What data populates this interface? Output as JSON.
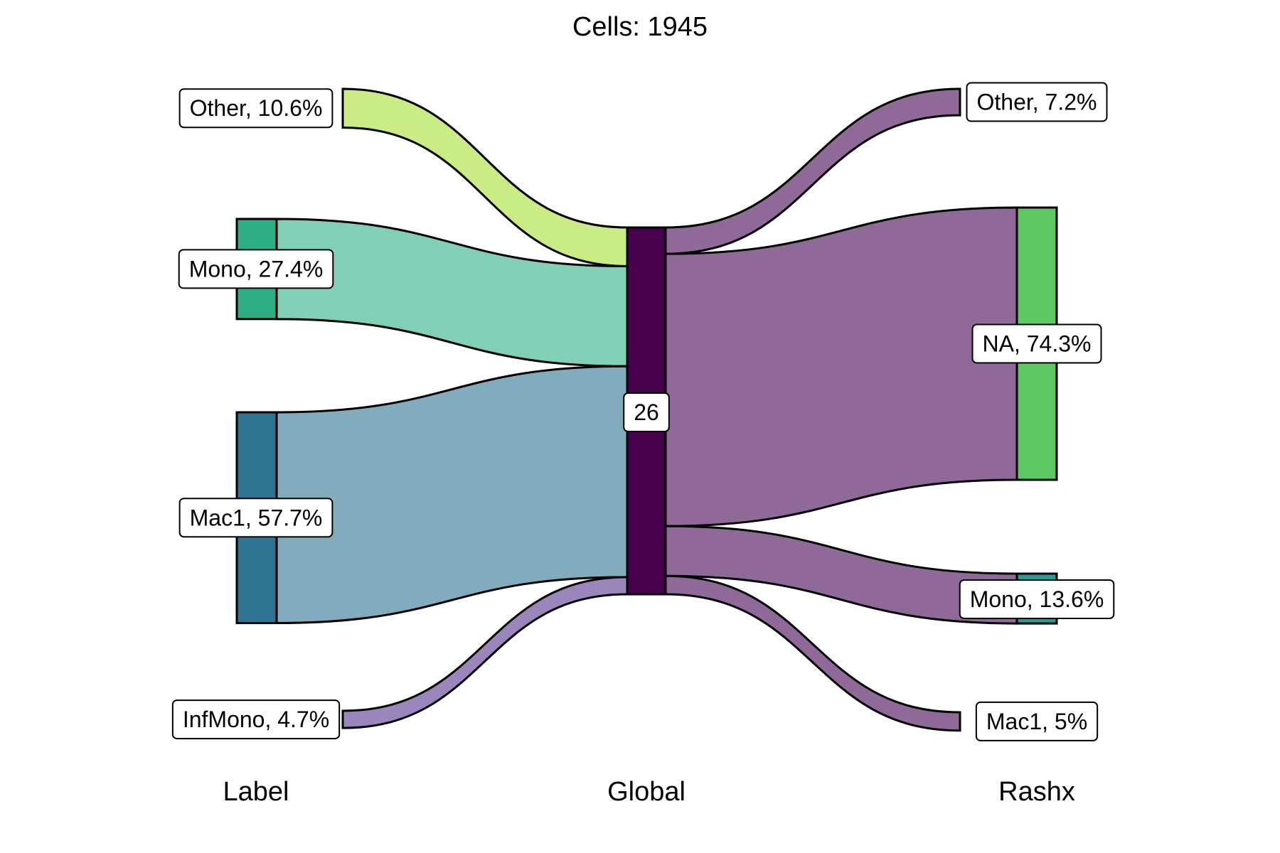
{
  "chart_data": {
    "type": "sankey",
    "title": "Cells:  1945",
    "axes": [
      "Label",
      "Global",
      "Rashx"
    ],
    "left_nodes": [
      {
        "name": "Other",
        "pct": 10.6,
        "label": "Other, 10.6%",
        "node_color": "#CBEB85",
        "flow_color": "#CBEB85"
      },
      {
        "name": "Mono",
        "pct": 27.4,
        "label": "Mono, 27.4%",
        "node_color": "#2BAE85",
        "flow_color": "#81CFB6"
      },
      {
        "name": "Mac1",
        "pct": 57.7,
        "label": "Mac1, 57.7%",
        "node_color": "#2E7493",
        "flow_color": "#83ABBE"
      },
      {
        "name": "InfMono",
        "pct": 4.7,
        "label": "InfMono, 4.7%",
        "node_color": "#9A86BA",
        "flow_color": "#9A86BA"
      }
    ],
    "center_node": {
      "name": "26",
      "label": "26",
      "color": "#46004C"
    },
    "right_nodes": [
      {
        "name": "Other",
        "pct": 7.2,
        "label": "Other, 7.2%",
        "node_color": "#8F6A98",
        "flow_color": "#8F6A98"
      },
      {
        "name": "NA",
        "pct": 74.3,
        "label": "NA, 74.3%",
        "node_color": "#5EC962",
        "flow_color": "#8F6A98"
      },
      {
        "name": "Mono",
        "pct": 13.6,
        "label": "Mono, 13.6%",
        "node_color": "#2A9C97",
        "flow_color": "#8F6A98"
      },
      {
        "name": "Mac1",
        "pct": 5.0,
        "label": "Mac1, 5%",
        "node_color": "#8F6A98",
        "flow_color": "#8F6A98"
      }
    ]
  }
}
